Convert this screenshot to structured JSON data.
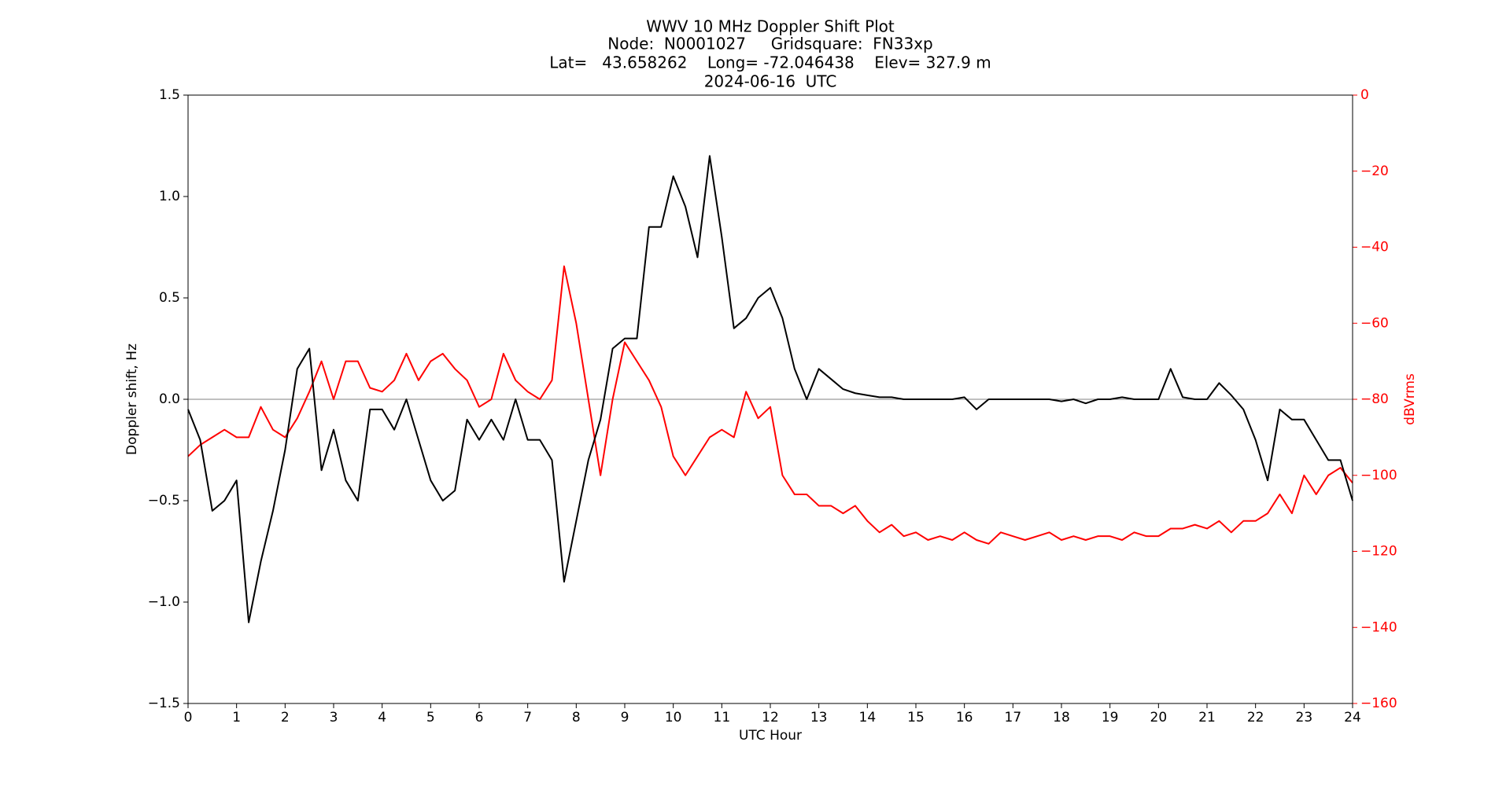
{
  "chart_data": {
    "type": "line",
    "title": "WWV 10 MHz Doppler Shift Plot",
    "subtitle": [
      "Node:  N0001027     Gridsquare:  FN33xp",
      "Lat=   43.658262    Long= -72.046438    Elev= 327.9 m",
      "2024-06-16  UTC"
    ],
    "x_label": "UTC Hour",
    "y_label": "Doppler shift, Hz",
    "y2_label": "dBVrms",
    "y2_color": "#ff0000",
    "reference_line": 0,
    "x": [
      0,
      0.25,
      0.5,
      0.75,
      1,
      1.25,
      1.5,
      1.75,
      2,
      2.25,
      2.5,
      2.75,
      3,
      3.25,
      3.5,
      3.75,
      4,
      4.25,
      4.5,
      4.75,
      5,
      5.25,
      5.5,
      5.75,
      6,
      6.25,
      6.5,
      6.75,
      7,
      7.25,
      7.5,
      7.75,
      8,
      8.25,
      8.5,
      8.75,
      9,
      9.25,
      9.5,
      9.75,
      10,
      10.25,
      10.5,
      10.75,
      11,
      11.25,
      11.5,
      11.75,
      12,
      12.25,
      12.5,
      12.75,
      13,
      13.25,
      13.5,
      13.75,
      14,
      14.25,
      14.5,
      14.75,
      15,
      15.25,
      15.5,
      15.75,
      16,
      16.25,
      16.5,
      16.75,
      17,
      17.25,
      17.5,
      17.75,
      18,
      18.25,
      18.5,
      18.75,
      19,
      19.25,
      19.5,
      19.75,
      20,
      20.25,
      20.5,
      20.75,
      21,
      21.25,
      21.5,
      21.75,
      22,
      22.25,
      22.5,
      22.75,
      23,
      23.25,
      23.5,
      23.75,
      24
    ],
    "series": [
      {
        "color": "#000000",
        "values": [
          -0.05,
          -0.2,
          -0.55,
          -0.5,
          -0.4,
          -1.1,
          -0.8,
          -0.55,
          -0.25,
          0.15,
          0.25,
          -0.35,
          -0.15,
          -0.4,
          -0.5,
          -0.05,
          -0.05,
          -0.15,
          0.0,
          -0.2,
          -0.4,
          -0.5,
          -0.45,
          -0.1,
          -0.2,
          -0.1,
          -0.2,
          0.0,
          -0.2,
          -0.2,
          -0.3,
          -0.9,
          -0.6,
          -0.3,
          -0.1,
          0.25,
          0.3,
          0.3,
          0.85,
          0.85,
          1.1,
          0.95,
          0.7,
          1.2,
          0.8,
          0.35,
          0.4,
          0.5,
          0.55,
          0.4,
          0.15,
          0.0,
          0.15,
          0.1,
          0.05,
          0.03,
          0.02,
          0.01,
          0.01,
          0.0,
          0.0,
          0.0,
          0.0,
          0.0,
          0.01,
          -0.05,
          0.0,
          0.0,
          0.0,
          0.0,
          0.0,
          0.0,
          -0.01,
          0.0,
          -0.02,
          0.0,
          0.0,
          0.01,
          0.0,
          0.0,
          0.0,
          0.15,
          0.01,
          0.0,
          0.0,
          0.08,
          0.02,
          -0.05,
          -0.2,
          -0.4,
          -0.05,
          -0.1,
          -0.1,
          -0.2,
          -0.3,
          -0.3,
          -0.5
        ]
      },
      {
        "color": "#ff0000",
        "axis": "y2",
        "values": [
          -95,
          -92,
          -90,
          -88,
          -90,
          -90,
          -82,
          -88,
          -90,
          -85,
          -78,
          -70,
          -80,
          -70,
          -70,
          -77,
          -78,
          -75,
          -68,
          -75,
          -70,
          -68,
          -72,
          -75,
          -82,
          -80,
          -68,
          -75,
          -78,
          -80,
          -75,
          -45,
          -60,
          -80,
          -100,
          -80,
          -65,
          -70,
          -75,
          -82,
          -95,
          -100,
          -95,
          -90,
          -88,
          -90,
          -78,
          -85,
          -82,
          -100,
          -105,
          -105,
          -108,
          -108,
          -110,
          -108,
          -112,
          -115,
          -113,
          -116,
          -115,
          -117,
          -116,
          -117,
          -115,
          -117,
          -118,
          -115,
          -116,
          -117,
          -116,
          -115,
          -117,
          -116,
          -117,
          -116,
          -116,
          -117,
          -115,
          -116,
          -116,
          -114,
          -114,
          -113,
          -114,
          -112,
          -115,
          -112,
          -112,
          -110,
          -105,
          -110,
          -100,
          -105,
          -100,
          -98,
          -102
        ]
      }
    ],
    "xlim": [
      0,
      24
    ],
    "xticks": [
      0,
      1,
      2,
      3,
      4,
      5,
      6,
      7,
      8,
      9,
      10,
      11,
      12,
      13,
      14,
      15,
      16,
      17,
      18,
      19,
      20,
      21,
      22,
      23,
      24
    ],
    "ylim": [
      -1.5,
      1.5
    ],
    "yticks": [
      1.5,
      {
        "value": 1.0,
        "label": "1.0"
      },
      0.5,
      {
        "value": 0,
        "label": "0.0"
      },
      {
        "value": -0.5,
        "label": "−0.5"
      },
      {
        "value": -1.0,
        "label": "−1.0"
      },
      {
        "value": -1.5,
        "label": "−1.5"
      }
    ],
    "y2lim": [
      -160,
      0
    ],
    "y2ticks": [
      0,
      {
        "value": -20,
        "label": "−20"
      },
      {
        "value": -40,
        "label": "−40"
      },
      {
        "value": -60,
        "label": "−60"
      },
      {
        "value": -80,
        "label": "−80"
      },
      {
        "value": -100,
        "label": "−100"
      },
      {
        "value": -120,
        "label": "−120"
      },
      {
        "value": -140,
        "label": "−140"
      },
      {
        "value": -160,
        "label": "−160"
      }
    ]
  }
}
